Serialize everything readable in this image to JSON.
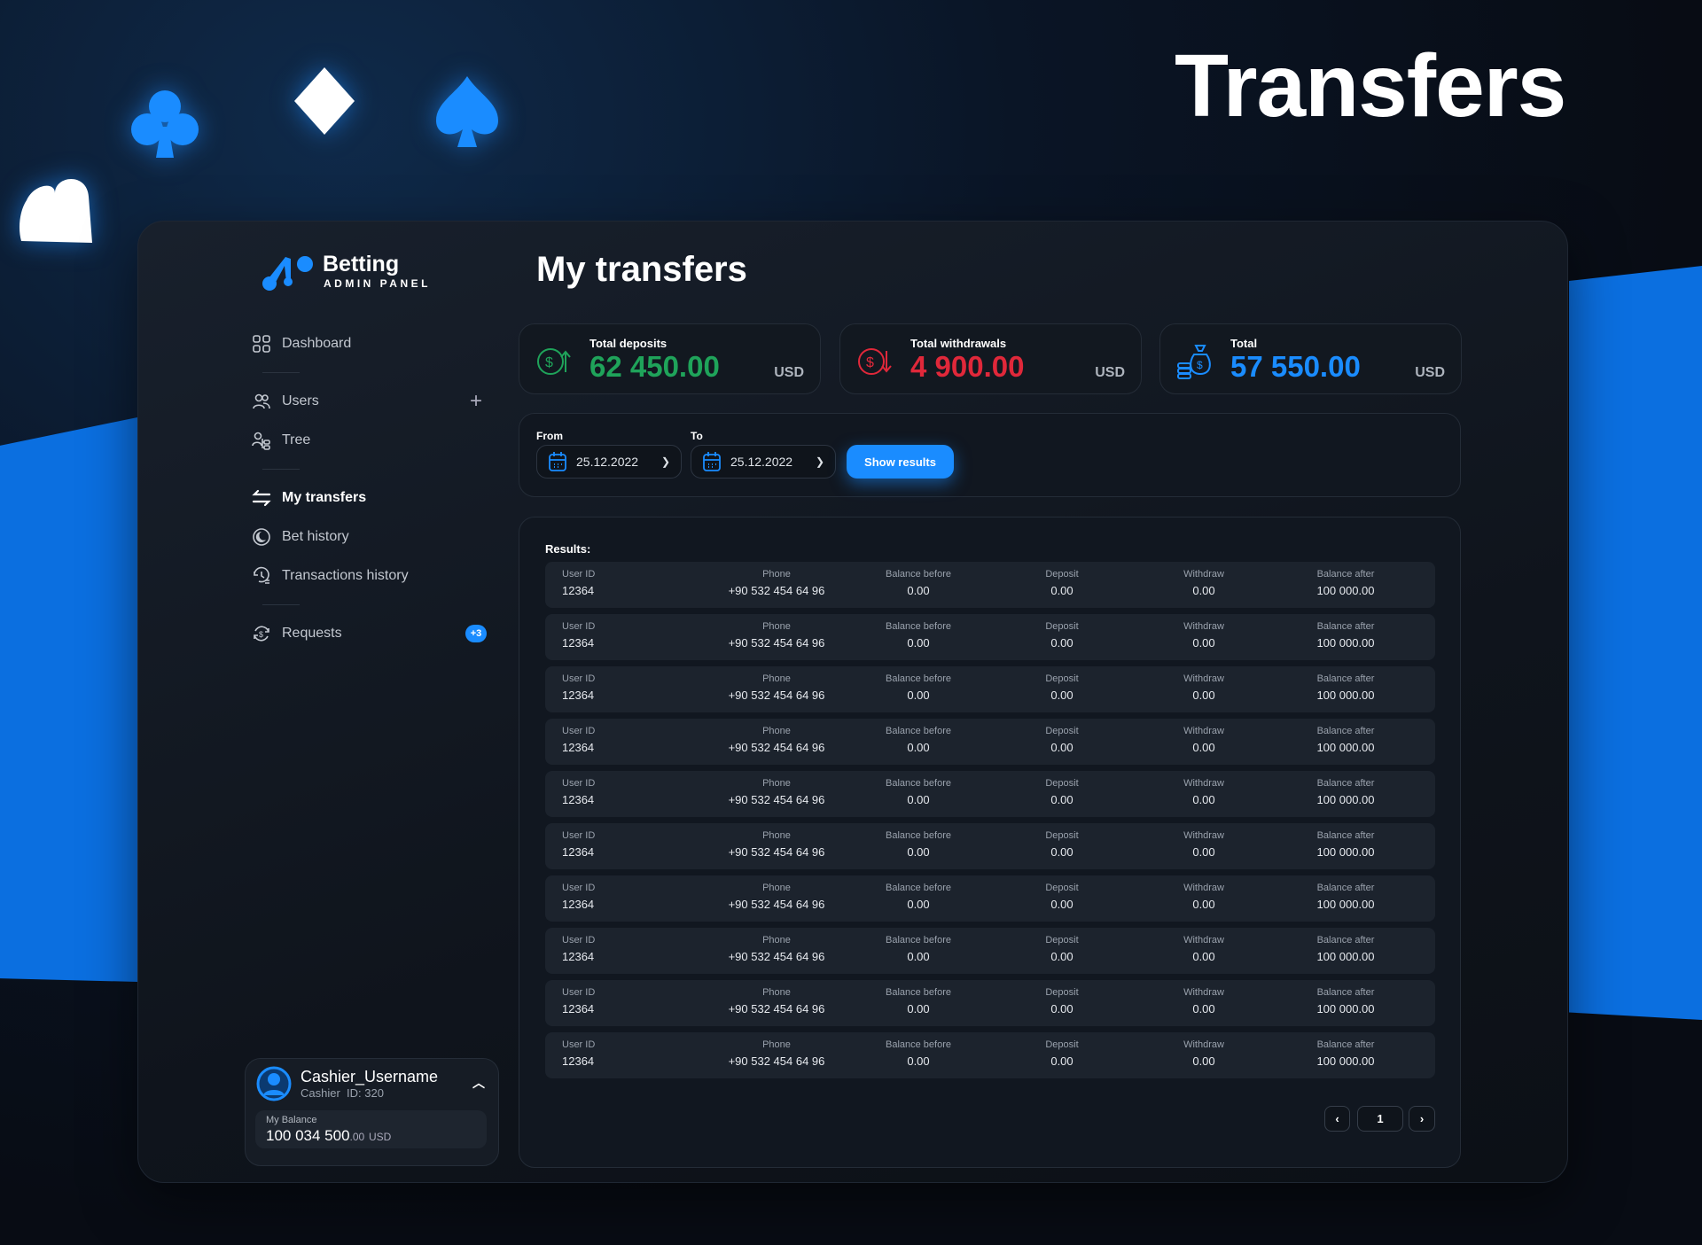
{
  "hero_title": "Transfers",
  "logo": {
    "name": "Betting",
    "subtitle": "ADMIN PANEL"
  },
  "sidebar": {
    "items": [
      {
        "label": "Dashboard",
        "icon": "dashboard-icon"
      },
      {
        "label": "Users",
        "icon": "users-icon"
      },
      {
        "label": "Tree",
        "icon": "tree-icon"
      },
      {
        "label": "My transfers",
        "icon": "transfers-icon",
        "active": true
      },
      {
        "label": "Bet history",
        "icon": "bet-history-icon"
      },
      {
        "label": "Transactions history",
        "icon": "transactions-history-icon"
      },
      {
        "label": "Requests",
        "icon": "requests-icon",
        "badge": "+3"
      }
    ],
    "add_label": "+"
  },
  "user": {
    "name": "Cashier_Username",
    "id_text": "Cashier  ID: 320",
    "balance_label": "My Balance",
    "balance_main": "100 034 500",
    "balance_dec": ".00",
    "balance_cur": "USD"
  },
  "page_title": "My transfers",
  "stats": [
    {
      "label": "Total deposits",
      "value": "62 450.00",
      "currency": "USD",
      "color": "#1fa35a"
    },
    {
      "label": "Total withdrawals",
      "value": "4 900.00",
      "currency": "USD",
      "color": "#e0283a"
    },
    {
      "label": "Total",
      "value": "57 550.00",
      "currency": "USD",
      "color": "#1a8cff"
    }
  ],
  "filter": {
    "from_label": "From",
    "from_value": "25.12.2022",
    "to_label": "To",
    "to_value": "25.12.2022",
    "button": "Show results"
  },
  "results": {
    "label": "Results:",
    "columns": [
      "User ID",
      "Phone",
      "Balance before",
      "Deposit",
      "Withdraw",
      "Balance after"
    ],
    "rows": [
      [
        "12364",
        "+90 532 454 64 96",
        "0.00",
        "0.00",
        "0.00",
        "100 000.00"
      ],
      [
        "12364",
        "+90 532 454 64 96",
        "0.00",
        "0.00",
        "0.00",
        "100 000.00"
      ],
      [
        "12364",
        "+90 532 454 64 96",
        "0.00",
        "0.00",
        "0.00",
        "100 000.00"
      ],
      [
        "12364",
        "+90 532 454 64 96",
        "0.00",
        "0.00",
        "0.00",
        "100 000.00"
      ],
      [
        "12364",
        "+90 532 454 64 96",
        "0.00",
        "0.00",
        "0.00",
        "100 000.00"
      ],
      [
        "12364",
        "+90 532 454 64 96",
        "0.00",
        "0.00",
        "0.00",
        "100 000.00"
      ],
      [
        "12364",
        "+90 532 454 64 96",
        "0.00",
        "0.00",
        "0.00",
        "100 000.00"
      ],
      [
        "12364",
        "+90 532 454 64 96",
        "0.00",
        "0.00",
        "0.00",
        "100 000.00"
      ],
      [
        "12364",
        "+90 532 454 64 96",
        "0.00",
        "0.00",
        "0.00",
        "100 000.00"
      ],
      [
        "12364",
        "+90 532 454 64 96",
        "0.00",
        "0.00",
        "0.00",
        "100 000.00"
      ]
    ]
  },
  "pagination": {
    "page": "1",
    "prev": "‹",
    "next": "›"
  },
  "colors": {
    "accent": "#1a8cff",
    "brand_blue": "#0b6fe0"
  }
}
